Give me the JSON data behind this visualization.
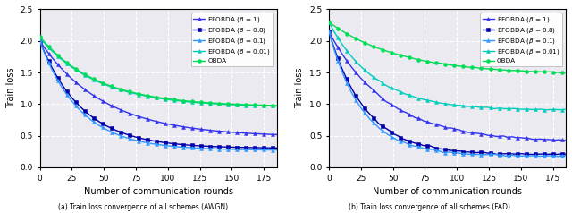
{
  "title_a": "(a) Train loss convergence of all schemes (AWGN)",
  "title_b": "(b) Train loss convergence of all schemes (FAD)",
  "xlabel": "Number of communication rounds",
  "ylabel": "Train loss",
  "xlim": [
    0,
    185
  ],
  "ylim": [
    0.0,
    2.5
  ],
  "yticks": [
    0.0,
    0.5,
    1.0,
    1.5,
    2.0,
    2.5
  ],
  "xticks": [
    0,
    25,
    50,
    75,
    100,
    125,
    150,
    175
  ],
  "legend_labels": [
    "EFOBDA ($\\beta$ = 1)",
    "EFOBDA ($\\beta$ = 0.8)",
    "EFOBDA ($\\beta$ = 0.1)",
    "EFOBDA ($\\beta$ = 0.01)",
    "OBDA"
  ],
  "colors": {
    "efobda_b1": "#3333ee",
    "efobda_b08": "#0000aa",
    "efobda_b01": "#3399ff",
    "efobda_b001": "#00ccbb",
    "obda": "#00dd55"
  },
  "markers": {
    "efobda_b1": "^",
    "efobda_b08": "s",
    "efobda_b01": "^",
    "efobda_b001": "^",
    "obda": "o"
  },
  "bg_color": "#eaeaf0",
  "grid_color": "#ffffff",
  "series_keys": [
    "efobda_b1",
    "efobda_b08",
    "efobda_b01",
    "efobda_b001",
    "obda"
  ]
}
